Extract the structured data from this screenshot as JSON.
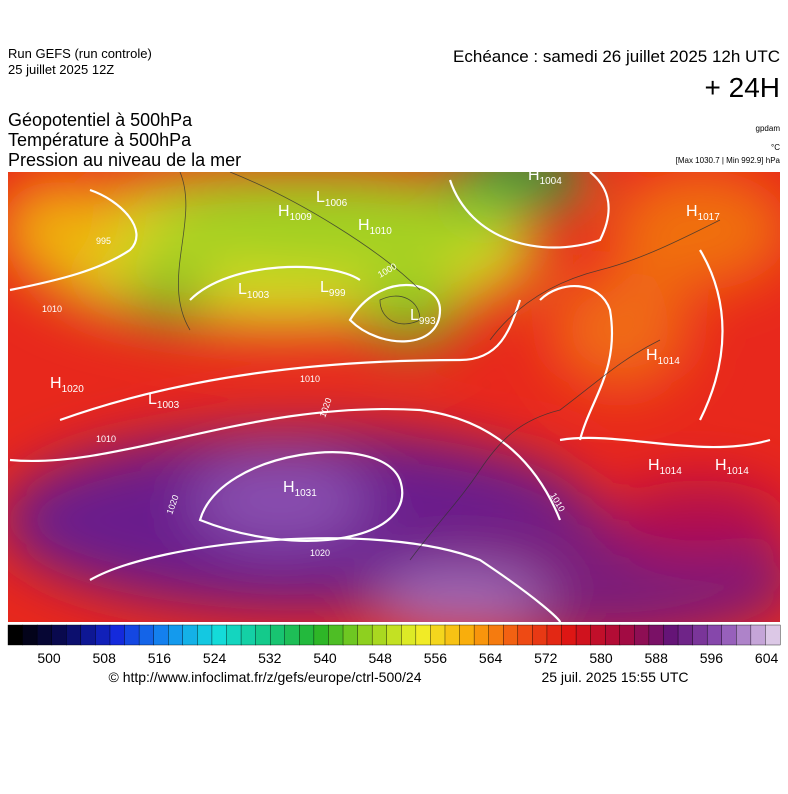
{
  "header": {
    "run": "Run GEFS (run controle)",
    "run_date": "25 juillet 2025 12Z",
    "valid": "Echéance : samedi 26 juillet 2025 12h UTC",
    "lead": "+ 24H",
    "layers": [
      "Géopotentiel à 500hPa",
      "Température à 500hPa",
      "Pression au niveau de la mer"
    ],
    "units": [
      "gpdam",
      "°C",
      "[Max 1030.7 | Min 992.9] hPa"
    ]
  },
  "map": {
    "centers": [
      {
        "letter": "H",
        "value": "1009"
      },
      {
        "letter": "L",
        "value": "1006"
      },
      {
        "letter": "H",
        "value": "1010"
      },
      {
        "letter": "H",
        "value": "1004"
      },
      {
        "letter": "H",
        "value": "1017"
      },
      {
        "letter": "L",
        "value": "1003"
      },
      {
        "letter": "L",
        "value": "999"
      },
      {
        "letter": "L",
        "value": "993"
      },
      {
        "letter": "H",
        "value": "1020"
      },
      {
        "letter": "L",
        "value": "1003"
      },
      {
        "letter": "H",
        "value": "1014"
      },
      {
        "letter": "H",
        "value": "1031"
      },
      {
        "letter": "H",
        "value": "1014"
      },
      {
        "letter": "H",
        "value": "1014"
      }
    ],
    "isobar_labels": [
      "995",
      "1010",
      "1000",
      "1010",
      "1010",
      "1020",
      "1020",
      "1020",
      "1010"
    ]
  },
  "colorbar": {
    "ticks": [
      500,
      508,
      516,
      524,
      532,
      540,
      548,
      556,
      564,
      572,
      580,
      588,
      596,
      604
    ]
  },
  "footer": {
    "source": "© http://www.infoclimat.fr/z/gefs/europe/ctrl-500/24",
    "generated": "25 juil. 2025 15:55 UTC"
  }
}
